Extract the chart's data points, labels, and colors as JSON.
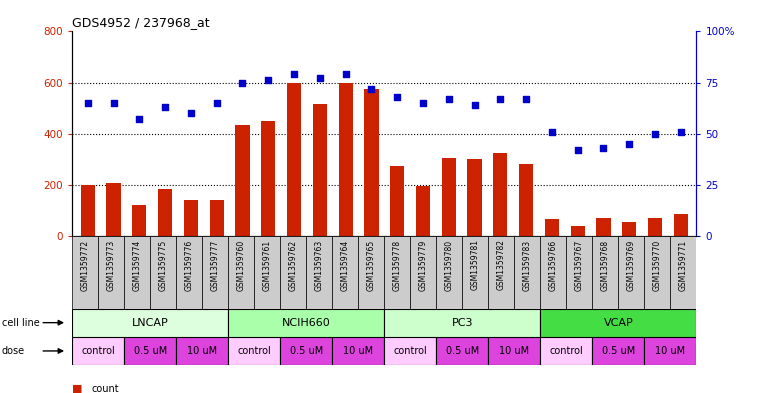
{
  "title": "GDS4952 / 237968_at",
  "samples": [
    "GSM1359772",
    "GSM1359773",
    "GSM1359774",
    "GSM1359775",
    "GSM1359776",
    "GSM1359777",
    "GSM1359760",
    "GSM1359761",
    "GSM1359762",
    "GSM1359763",
    "GSM1359764",
    "GSM1359765",
    "GSM1359778",
    "GSM1359779",
    "GSM1359780",
    "GSM1359781",
    "GSM1359782",
    "GSM1359783",
    "GSM1359766",
    "GSM1359767",
    "GSM1359768",
    "GSM1359769",
    "GSM1359770",
    "GSM1359771"
  ],
  "counts": [
    200,
    205,
    120,
    185,
    140,
    140,
    435,
    450,
    600,
    515,
    600,
    575,
    275,
    195,
    305,
    300,
    325,
    280,
    65,
    40,
    70,
    55,
    70,
    85
  ],
  "percentiles": [
    65,
    65,
    57,
    63,
    60,
    65,
    75,
    76,
    79,
    77,
    79,
    72,
    68,
    65,
    67,
    64,
    67,
    67,
    51,
    42,
    43,
    45,
    50,
    51
  ],
  "bar_color": "#cc2200",
  "dot_color": "#0000cc",
  "ylim_left": [
    0,
    800
  ],
  "ylim_right": [
    0,
    100
  ],
  "yticks_left": [
    0,
    200,
    400,
    600,
    800
  ],
  "yticks_right": [
    0,
    25,
    50,
    75,
    100
  ],
  "yticklabels_right": [
    "0",
    "25",
    "50",
    "75",
    "100%"
  ],
  "bg_color": "#ffffff",
  "cell_lines": [
    {
      "label": "LNCAP",
      "start": 0,
      "end": 6,
      "color": "#ddffdd"
    },
    {
      "label": "NCIH660",
      "start": 6,
      "end": 12,
      "color": "#aaffaa"
    },
    {
      "label": "PC3",
      "start": 12,
      "end": 18,
      "color": "#ccffcc"
    },
    {
      "label": "VCAP",
      "start": 18,
      "end": 24,
      "color": "#44dd44"
    }
  ],
  "dose_groups": [
    {
      "label": "control",
      "start": 0,
      "end": 2,
      "color": "#ffccff"
    },
    {
      "label": "0.5 uM",
      "start": 2,
      "end": 4,
      "color": "#dd44dd"
    },
    {
      "label": "10 uM",
      "start": 4,
      "end": 6,
      "color": "#dd44dd"
    },
    {
      "label": "control",
      "start": 6,
      "end": 8,
      "color": "#ffccff"
    },
    {
      "label": "0.5 uM",
      "start": 8,
      "end": 10,
      "color": "#dd44dd"
    },
    {
      "label": "10 uM",
      "start": 10,
      "end": 12,
      "color": "#dd44dd"
    },
    {
      "label": "control",
      "start": 12,
      "end": 14,
      "color": "#ffccff"
    },
    {
      "label": "0.5 uM",
      "start": 14,
      "end": 16,
      "color": "#dd44dd"
    },
    {
      "label": "10 uM",
      "start": 16,
      "end": 18,
      "color": "#dd44dd"
    },
    {
      "label": "control",
      "start": 18,
      "end": 20,
      "color": "#ffccff"
    },
    {
      "label": "0.5 uM",
      "start": 20,
      "end": 22,
      "color": "#dd44dd"
    },
    {
      "label": "10 uM",
      "start": 22,
      "end": 24,
      "color": "#dd44dd"
    }
  ],
  "legend_count_color": "#cc2200",
  "legend_pct_color": "#0000cc"
}
